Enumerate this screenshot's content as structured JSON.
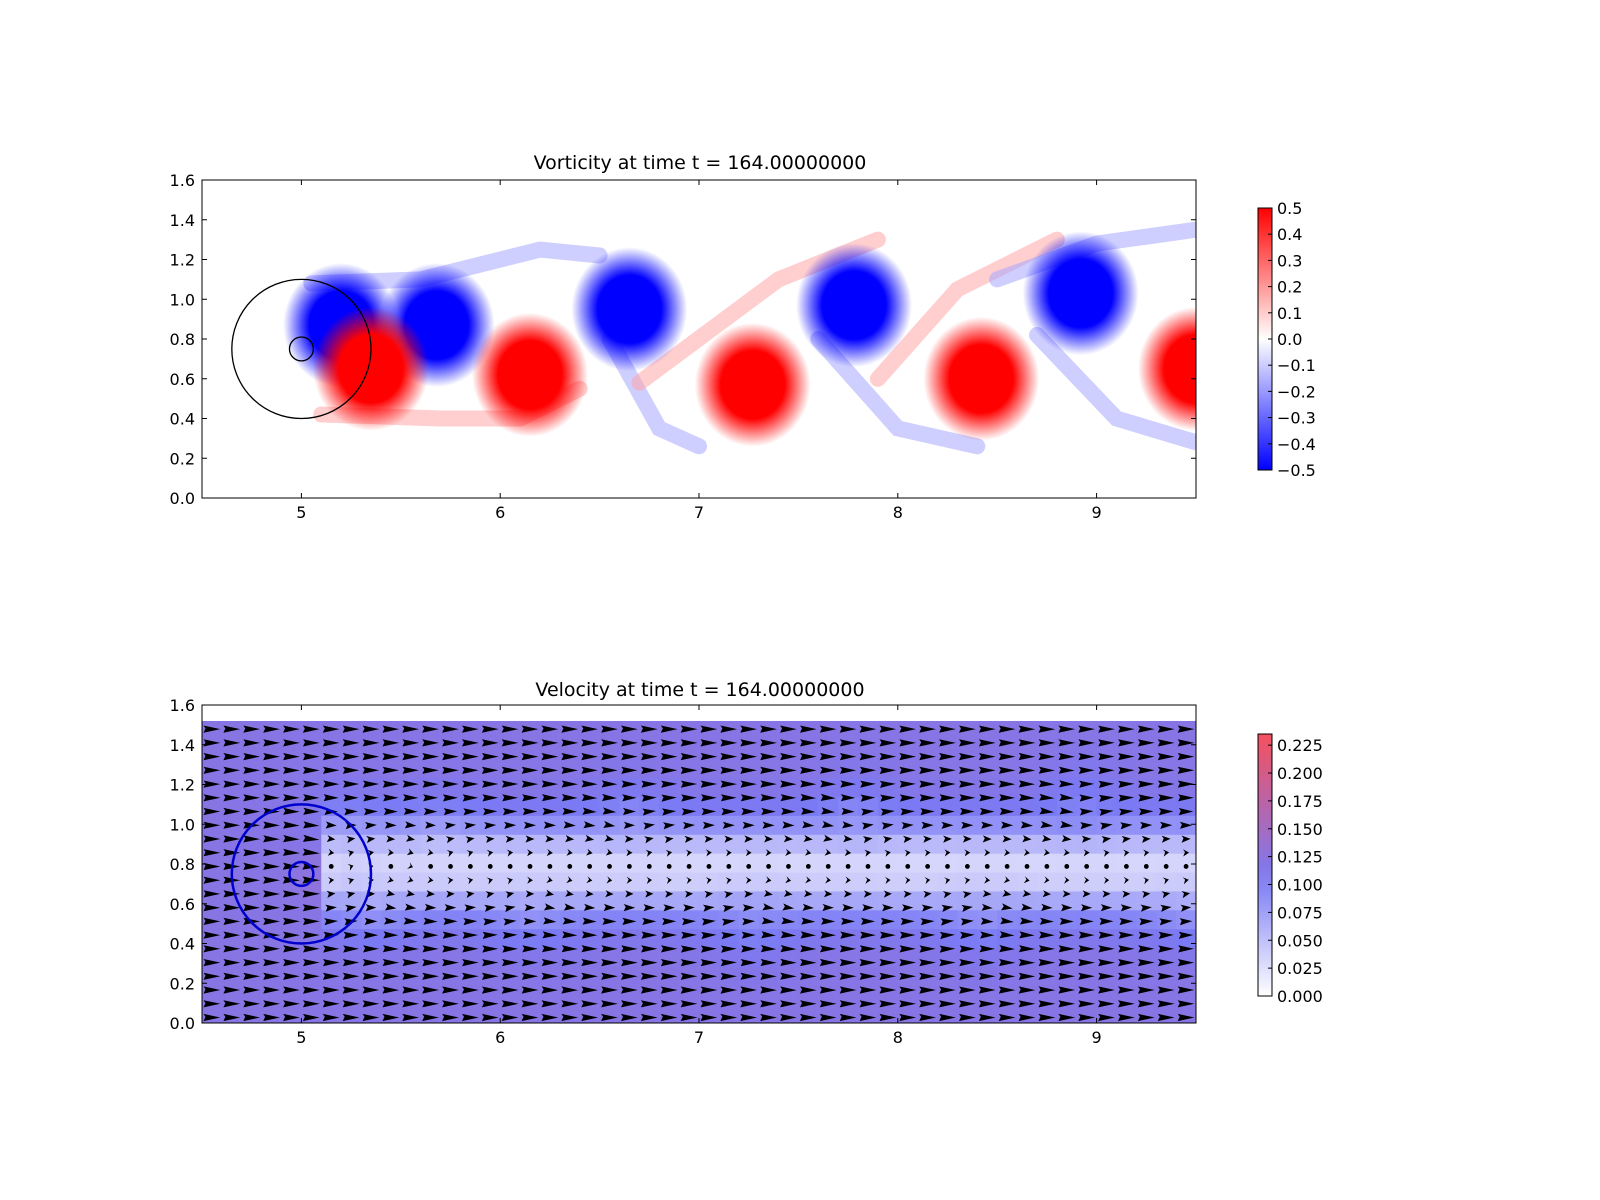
{
  "chart_data": [
    {
      "type": "heatmap",
      "title": "Vorticity at time t =   164.00000000",
      "xlabel": "",
      "ylabel": "",
      "xlim": [
        4.5,
        9.5
      ],
      "ylim": [
        0.0,
        1.6
      ],
      "xticks": [
        "5",
        "6",
        "7",
        "8",
        "9"
      ],
      "yticks": [
        "0.0",
        "0.2",
        "0.4",
        "0.6",
        "0.8",
        "1.0",
        "1.2",
        "1.4",
        "1.6"
      ],
      "colormap": "bwr",
      "clim": [
        -0.5,
        0.5
      ],
      "colorbar_ticks": [
        "0.5",
        "0.4",
        "0.3",
        "0.2",
        "0.1",
        "0.0",
        "−0.1",
        "−0.2",
        "−0.3",
        "−0.4",
        "−0.5"
      ],
      "colors": {
        "negative": "#0000ff",
        "zero": "#ffffff",
        "positive": "#ff0000"
      },
      "circles": [
        {
          "cx": 5.0,
          "cy": 0.75,
          "r": 0.35
        },
        {
          "cx": 5.0,
          "cy": 0.75,
          "r": 0.06
        }
      ],
      "vortices": [
        {
          "x": 5.2,
          "y": 0.87,
          "sign": -1
        },
        {
          "x": 5.68,
          "y": 0.87,
          "sign": -1
        },
        {
          "x": 6.65,
          "y": 0.95,
          "sign": -1
        },
        {
          "x": 7.78,
          "y": 0.97,
          "sign": -1
        },
        {
          "x": 8.92,
          "y": 1.03,
          "sign": -1
        },
        {
          "x": 5.35,
          "y": 0.65,
          "sign": 1
        },
        {
          "x": 6.15,
          "y": 0.62,
          "sign": 1
        },
        {
          "x": 7.27,
          "y": 0.57,
          "sign": 1
        },
        {
          "x": 8.42,
          "y": 0.6,
          "sign": 1
        },
        {
          "x": 9.5,
          "y": 0.65,
          "sign": 1
        }
      ]
    },
    {
      "type": "heatmap",
      "title": "Velocity at time t =   164.00000000",
      "xlabel": "",
      "ylabel": "",
      "xlim": [
        4.5,
        9.5
      ],
      "ylim": [
        0.0,
        1.6
      ],
      "xticks": [
        "5",
        "6",
        "7",
        "8",
        "9"
      ],
      "yticks": [
        "0.0",
        "0.2",
        "0.4",
        "0.6",
        "0.8",
        "1.0",
        "1.2",
        "1.4",
        "1.6"
      ],
      "field_top": 1.52,
      "colormap": "white-blue-red",
      "clim": [
        0.0,
        0.235
      ],
      "colorbar_ticks": [
        "0.225",
        "0.200",
        "0.175",
        "0.150",
        "0.125",
        "0.100",
        "0.075",
        "0.050",
        "0.025",
        "0.000"
      ],
      "colors": {
        "low": "#ffffff",
        "mid": "#7a7af5",
        "high": "#f5505f"
      },
      "quiver": true,
      "arrow_color": "#000000",
      "circles": [
        {
          "cx": 5.0,
          "cy": 0.75,
          "r": 0.35
        },
        {
          "cx": 5.0,
          "cy": 0.75,
          "r": 0.06
        }
      ],
      "circle_color": "#0000cc"
    }
  ]
}
